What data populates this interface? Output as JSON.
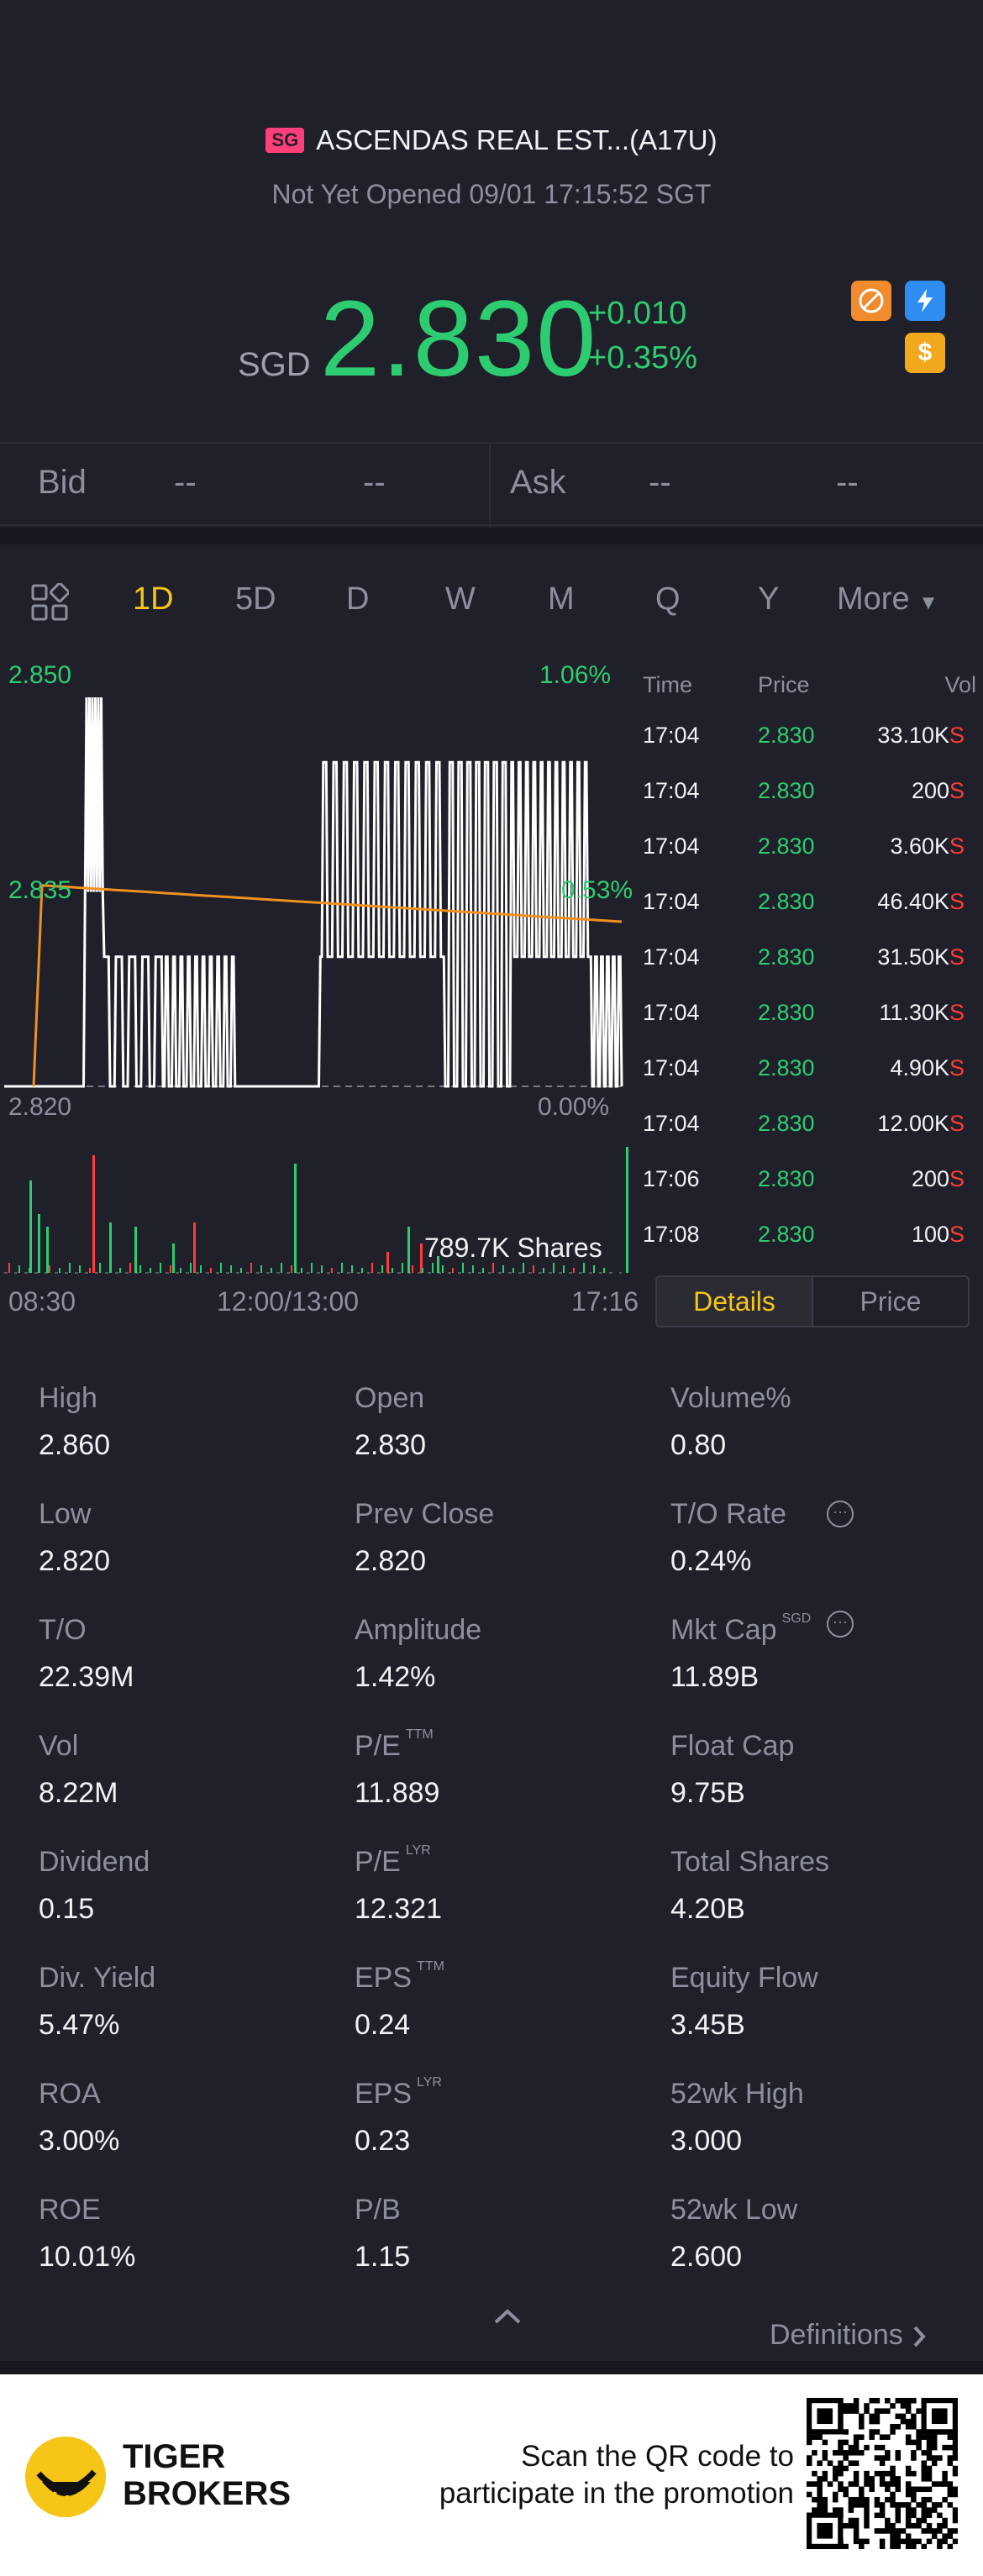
{
  "header": {
    "badge": "SG",
    "title": "ASCENDAS REAL EST...(A17U)",
    "status": "Not Yet Opened 09/01 17:15:52 SGT",
    "currency": "SGD",
    "price": "2.830",
    "change": "+0.010",
    "change_pct": "+0.35%"
  },
  "quote_bar": {
    "bid_label": "Bid",
    "bid_price": "--",
    "bid_size": "--",
    "ask_label": "Ask",
    "ask_price": "--",
    "ask_size": "--"
  },
  "tabs": [
    "1D",
    "5D",
    "D",
    "W",
    "M",
    "Q",
    "Y",
    "More"
  ],
  "active_tab": "1D",
  "chart": {
    "y_top": "2.850",
    "y_top_pct": "1.06%",
    "y_mid": "2.835",
    "y_mid_pct": "0.53%",
    "y_bottom": "2.820",
    "y_bottom_pct": "0.00%",
    "volume_label": "789.7K Shares",
    "x_labels": [
      "08:30",
      "12:00/13:00",
      "17:16"
    ]
  },
  "chart_data": {
    "type": "line",
    "title": "",
    "ylim": [
      2.82,
      2.85
    ],
    "series": [
      {
        "name": "",
        "x": [
          "08:30",
          "17:16"
        ],
        "values": [
          2.82,
          2.83
        ]
      }
    ]
  },
  "trades": {
    "headers": [
      "Time",
      "Price",
      "Vol"
    ],
    "rows": [
      {
        "time": "17:04",
        "price": "2.830",
        "vol": "33.10K",
        "side": "S"
      },
      {
        "time": "17:04",
        "price": "2.830",
        "vol": "200",
        "side": "S"
      },
      {
        "time": "17:04",
        "price": "2.830",
        "vol": "3.60K",
        "side": "S"
      },
      {
        "time": "17:04",
        "price": "2.830",
        "vol": "46.40K",
        "side": "S"
      },
      {
        "time": "17:04",
        "price": "2.830",
        "vol": "31.50K",
        "side": "S"
      },
      {
        "time": "17:04",
        "price": "2.830",
        "vol": "11.30K",
        "side": "S"
      },
      {
        "time": "17:04",
        "price": "2.830",
        "vol": "4.90K",
        "side": "S"
      },
      {
        "time": "17:04",
        "price": "2.830",
        "vol": "12.00K",
        "side": "S"
      },
      {
        "time": "17:06",
        "price": "2.830",
        "vol": "200",
        "side": "S"
      },
      {
        "time": "17:08",
        "price": "2.830",
        "vol": "100",
        "side": "S"
      }
    ]
  },
  "toggle": {
    "details": "Details",
    "price": "Price"
  },
  "stats": {
    "high": {
      "label": "High",
      "value": "2.860"
    },
    "open": {
      "label": "Open",
      "value": "2.830"
    },
    "volume_pct": {
      "label": "Volume%",
      "value": "0.80"
    },
    "low": {
      "label": "Low",
      "value": "2.820"
    },
    "prev_close": {
      "label": "Prev Close",
      "value": "2.820"
    },
    "to_rate": {
      "label": "T/O Rate",
      "value": "0.24%"
    },
    "to": {
      "label": "T/O",
      "value": "22.39M"
    },
    "amplitude": {
      "label": "Amplitude",
      "value": "1.42%"
    },
    "mkt_cap": {
      "label": "Mkt Cap",
      "sup": "SGD",
      "value": "11.89B"
    },
    "vol": {
      "label": "Vol",
      "value": "8.22M"
    },
    "pe_ttm": {
      "label": "P/E",
      "sup": "TTM",
      "value": "11.889"
    },
    "float_cap": {
      "label": "Float Cap",
      "value": "9.75B"
    },
    "dividend": {
      "label": "Dividend",
      "value": "0.15"
    },
    "pe_lyr": {
      "label": "P/E",
      "sup": "LYR",
      "value": "12.321"
    },
    "total_shares": {
      "label": "Total Shares",
      "value": "4.20B"
    },
    "div_yield": {
      "label": "Div. Yield",
      "value": "5.47%"
    },
    "eps_ttm": {
      "label": "EPS",
      "sup": "TTM",
      "value": "0.24"
    },
    "equity_flow": {
      "label": "Equity Flow",
      "value": "3.45B"
    },
    "roa": {
      "label": "ROA",
      "value": "3.00%"
    },
    "eps_lyr": {
      "label": "EPS",
      "sup": "LYR",
      "value": "0.23"
    },
    "high_52wk": {
      "label": "52wk High",
      "value": "3.000"
    },
    "roe": {
      "label": "ROE",
      "value": "10.01%"
    },
    "pb": {
      "label": "P/B",
      "value": "1.15"
    },
    "low_52wk": {
      "label": "52wk Low",
      "value": "2.600"
    }
  },
  "definitions_label": "Definitions",
  "footer": {
    "brand_line1": "TIGER",
    "brand_line2": "BROKERS",
    "promo_line1": "Scan the QR code to",
    "promo_line2": "participate in the promotion"
  },
  "colors": {
    "background": "#1f2029",
    "up": "#2ecc71",
    "sell": "#ff3b3b",
    "accent": "#f5c518"
  }
}
